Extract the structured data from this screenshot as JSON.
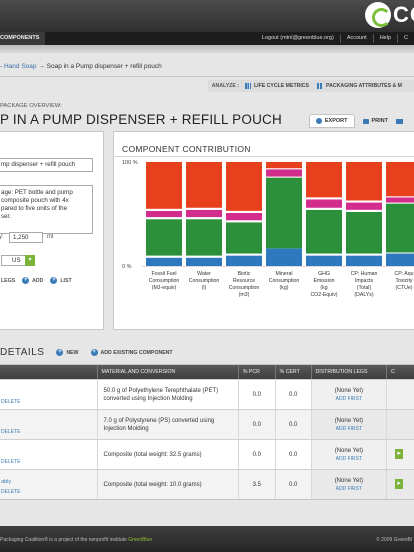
{
  "header": {
    "brand": "CO",
    "nav_tab": "COMPONENTS",
    "user": "Logout (mtnl@greenblue.org)",
    "links": [
      "Account",
      "Help",
      "C"
    ]
  },
  "breadcrumb": {
    "parent": "- Hand Soap",
    "arrow": "→",
    "current": "Soap in a Pump dispenser + refill pouch"
  },
  "analyze": {
    "label": "ANALYZE :",
    "items": [
      "LIFE CYCLE METRICS",
      "PACKAGING ATTRIBUTES & M"
    ]
  },
  "package": {
    "overview_label": "PACKAGE OVERVIEW:",
    "title": "P IN A PUMP DISPENSER + REFILL POUCH",
    "export": "EXPORT",
    "actions": [
      "PRINT",
      ""
    ]
  },
  "form": {
    "name_value": "mp dispenser + refill pouch",
    "description": "age: PET bottle and pump\n composite pouch with 4x\n pared to five units of the\n ser.",
    "qty_label": "y:",
    "qty_value": "1,250",
    "qty_unit": "ml",
    "unit_value": "US",
    "legs_label": "LEGS",
    "add_label": "ADD",
    "list_label": "LIST"
  },
  "chart_data": {
    "type": "bar",
    "title": "COMPONENT CONTRIBUTION",
    "ylim": [
      0,
      100
    ],
    "ytick_labels": [
      "100 %",
      "0 %"
    ],
    "categories": [
      "Fossil Fuel Consumption (MJ-equiv)",
      "Water Consumption (l)",
      "Biotic Resource Consumption (m3)",
      "Mineral Consumption (kg)",
      "GHG Emission (kg CO2-Equiv)",
      "CP: Human Impacts (Total) (DALYs)",
      "CP: Aqu Toxicity (CTUe)"
    ],
    "series": [
      {
        "color": "#2e78bd",
        "values": [
          8,
          8,
          10,
          17,
          10,
          10,
          12
        ]
      },
      {
        "color": "#ffffff",
        "values": [
          2,
          2,
          2,
          0,
          2,
          2,
          1
        ]
      },
      {
        "color": "#2c8f3a",
        "values": [
          35,
          35,
          30,
          68,
          42,
          40,
          47
        ]
      },
      {
        "color": "#ffffff",
        "values": [
          2,
          2,
          2,
          1,
          2,
          2,
          1
        ]
      },
      {
        "color": "#d22c8c",
        "values": [
          6,
          7,
          7,
          7,
          8,
          7,
          5
        ]
      },
      {
        "color": "#ffffff",
        "values": [
          2,
          2,
          2,
          1,
          2,
          2,
          1
        ]
      },
      {
        "color": "#e8401d",
        "values": [
          45,
          44,
          47,
          6,
          34,
          37,
          33
        ]
      }
    ],
    "legend": false,
    "grid": false
  },
  "details": {
    "title": "DETAILS",
    "new_label": "NEW",
    "add_existing_label": "ADD EXISTING COMPONENT",
    "columns": [
      "",
      "MATERIAL AND CONVERSION",
      "% PCR",
      "% CERT",
      "DISTRIBUTION LEGS",
      "C"
    ],
    "rows": [
      {
        "name": "",
        "delete": "DELETE",
        "material": "50.0 g of Polyethylene Terephthalate (PET) converted using Injection Molding",
        "pcr": "0.0",
        "cert": "0.0",
        "dist": "(None Yet)",
        "add_first": "ADD FIRST"
      },
      {
        "name": "",
        "delete": "DELETE",
        "material": "7.0 g of Polystyrene (PS) converted using Injection Molding",
        "pcr": "0.0",
        "cert": "0.0",
        "dist": "(None Yet)",
        "add_first": "ADD FIRST"
      },
      {
        "name": "",
        "delete": "DELETE",
        "material": "Composite (total weight: 32.5 grams)",
        "pcr": "0.0",
        "cert": "0.0",
        "dist": "(None Yet)",
        "add_first": "ADD FIRST"
      },
      {
        "name": "ably",
        "delete": "DELETE",
        "material": "Composite (total weight: 10.0 grams)",
        "pcr": "3.5",
        "cert": "0.0",
        "dist": "(None Yet)",
        "add_first": "ADD FIRST"
      }
    ]
  },
  "footer": {
    "left_prefix": "Packaging Coalition® is a project of the nonprofit institute ",
    "left_brand": "GreenBlue",
    "right": "© 2009 GreenBl"
  }
}
